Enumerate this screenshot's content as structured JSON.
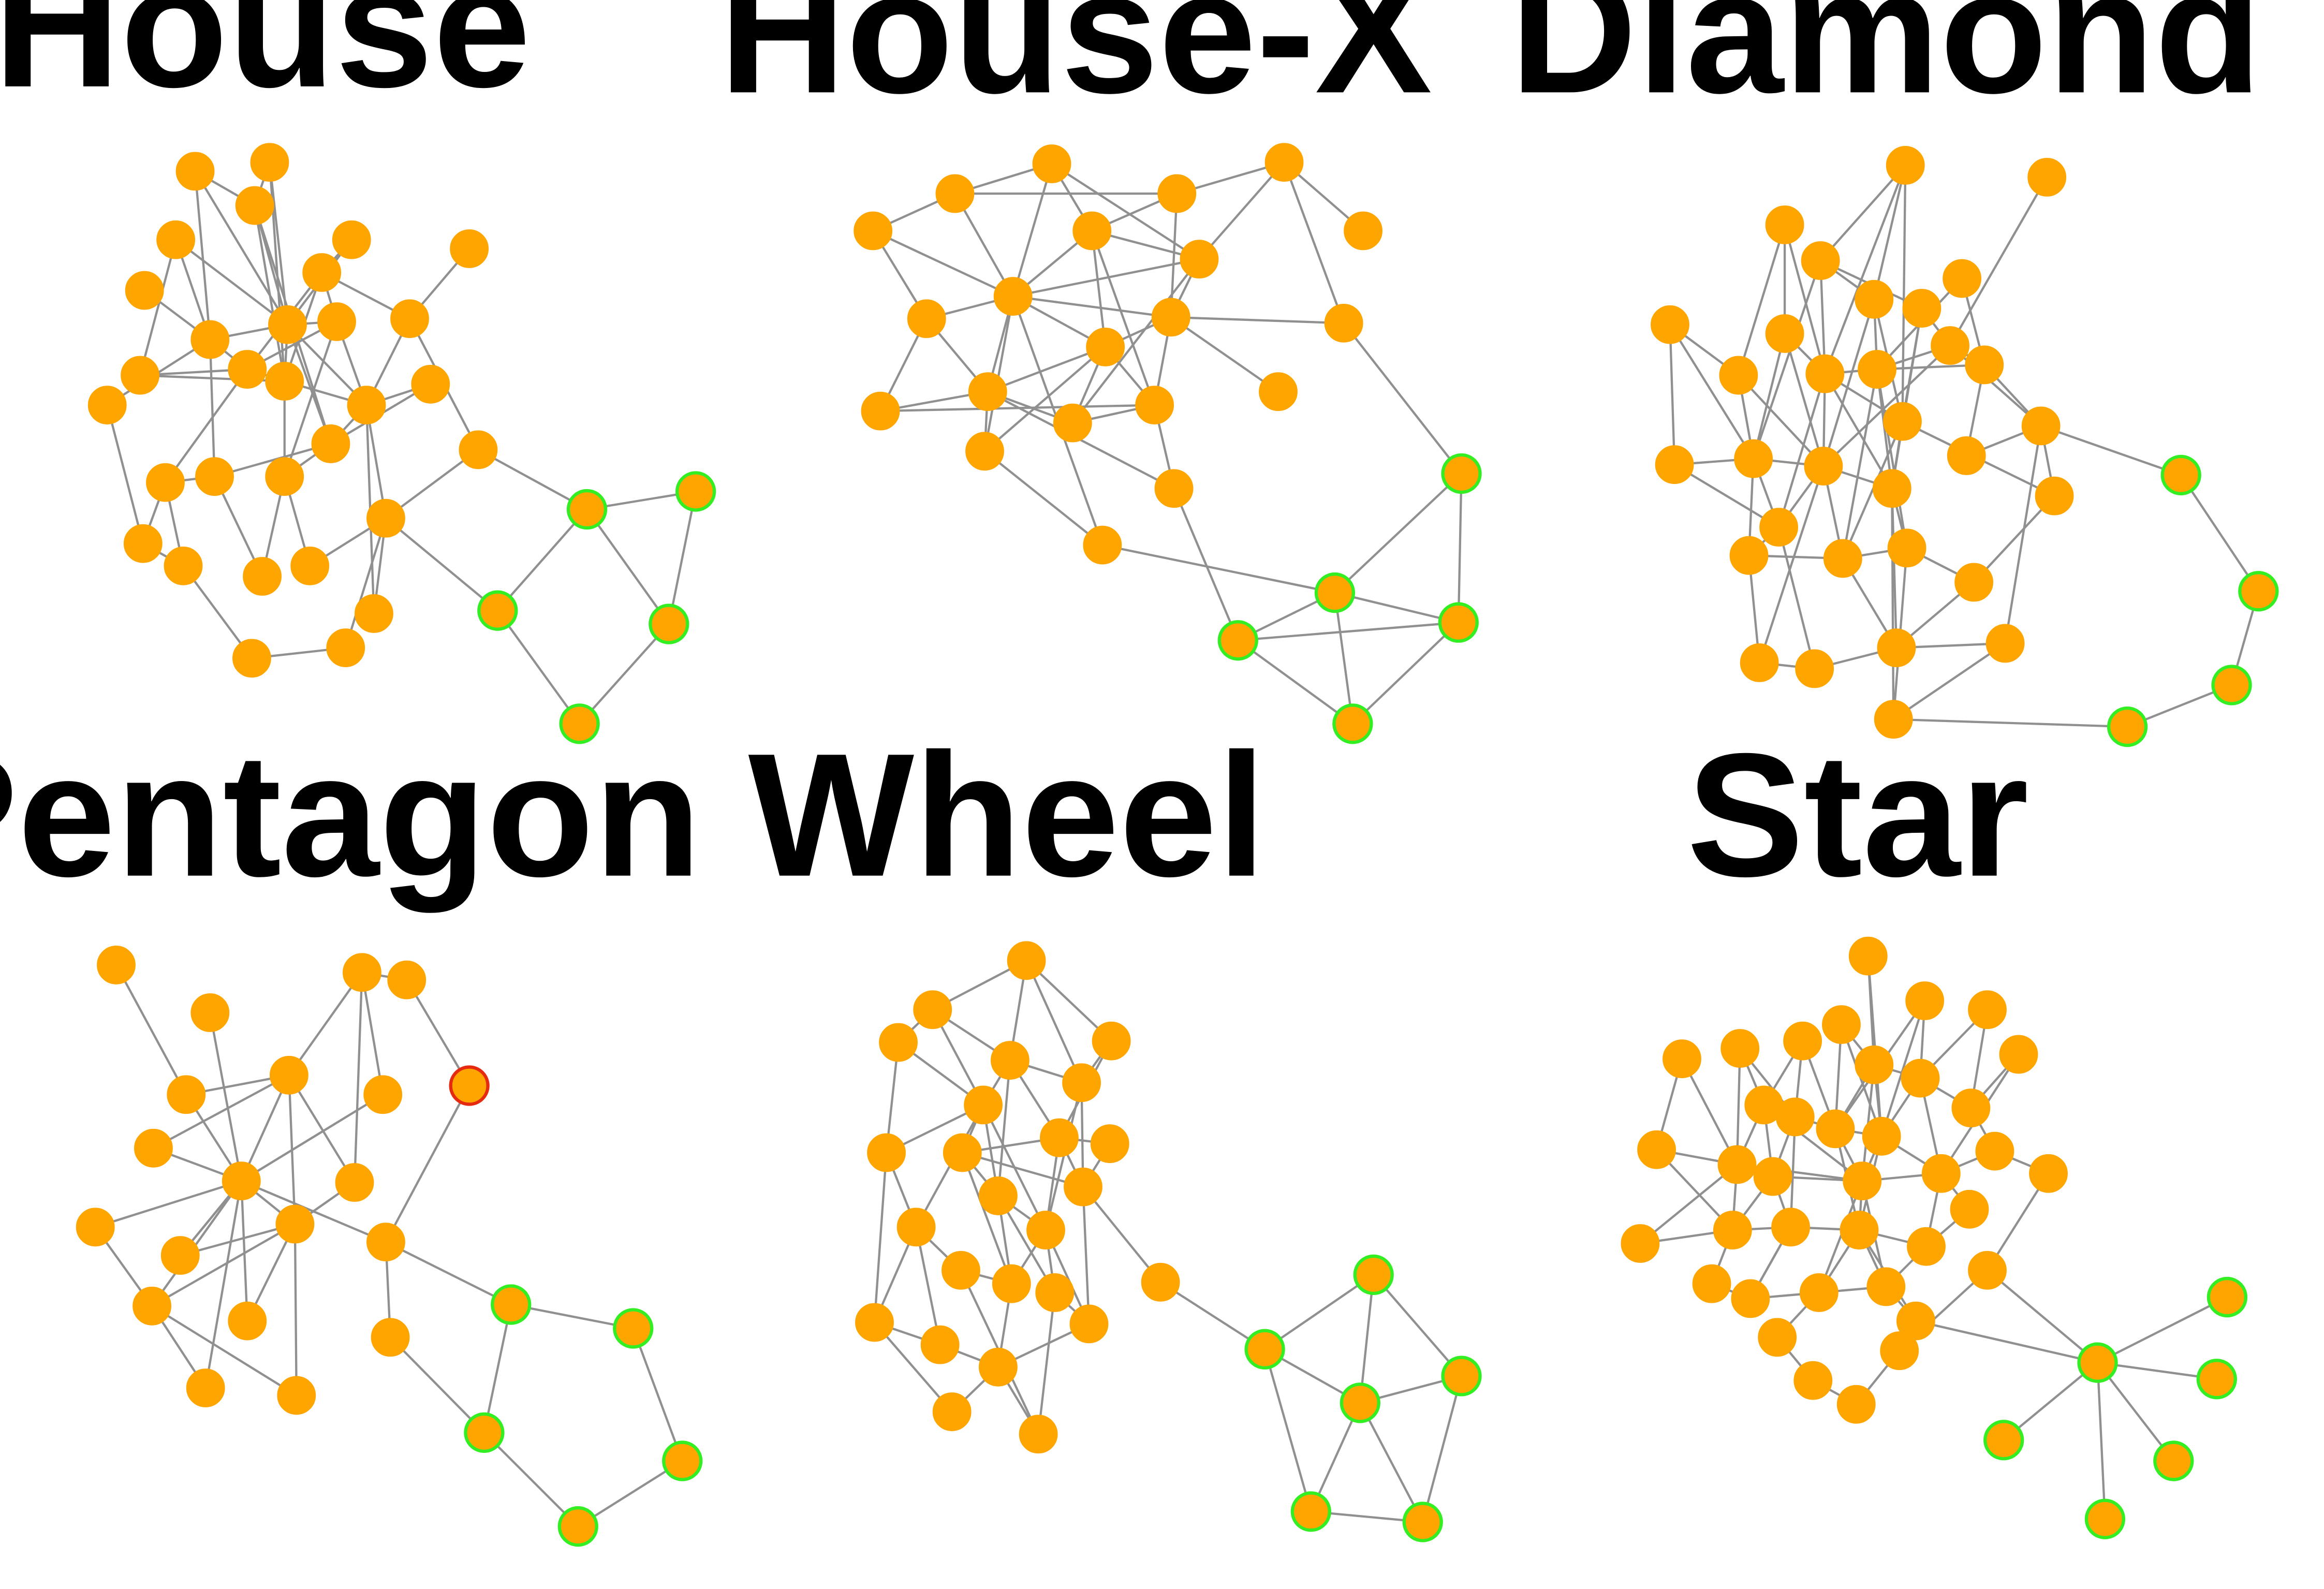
{
  "figure": {
    "node_fill": "#FFA500",
    "node_stroke_default": "#FFA500",
    "node_stroke_motif": "#33EE22",
    "node_stroke_highlight": "#E62A10",
    "edge_color": "#909090",
    "background": "#FFFFFF"
  },
  "panels": [
    {
      "key": "house",
      "title": "House",
      "motif": "house",
      "highlight_count": 0
    },
    {
      "key": "house_x",
      "title": "House-X",
      "motif": "house-x",
      "highlight_count": 0
    },
    {
      "key": "diamond",
      "title": "Diamond",
      "motif": "diamond",
      "highlight_count": 0
    },
    {
      "key": "pentagon",
      "title": "Pentagon",
      "motif": "pentagon",
      "highlight_count": 1
    },
    {
      "key": "wheel",
      "title": "Wheel",
      "motif": "wheel",
      "highlight_count": 0
    },
    {
      "key": "star",
      "title": "Star",
      "motif": "star",
      "highlight_count": 0
    }
  ]
}
